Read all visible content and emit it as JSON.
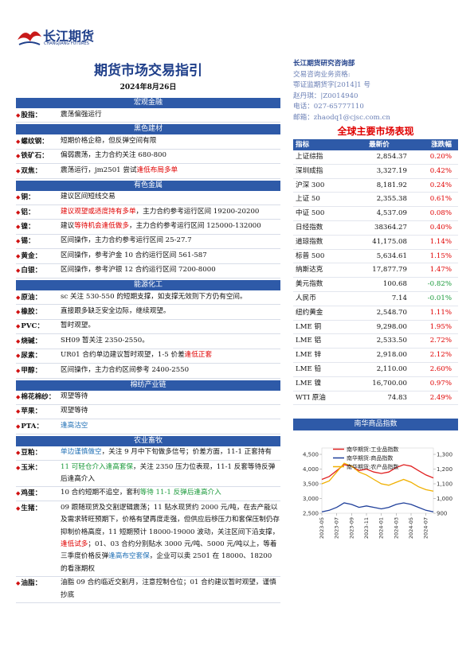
{
  "header": {
    "logo": "长江期货",
    "logo_en": "CHANGJIANG FUTURES",
    "title": "期货市场交易指引",
    "date": "2024年8月26日"
  },
  "sections": [
    {
      "title": "宏观金融",
      "rows": [
        {
          "label": "股指：",
          "text": [
            {
              "text": "震荡偏强运行"
            }
          ]
        }
      ]
    },
    {
      "title": "黑色建材",
      "rows": [
        {
          "label": "螺纹钢：",
          "text": [
            {
              "text": "短期价格企稳，但反弹空间有限"
            }
          ]
        },
        {
          "label": "铁矿石：",
          "text": [
            {
              "text": "偏弱震荡，主力合约关注 680-800"
            }
          ]
        },
        {
          "label": "双焦：",
          "text": [
            {
              "text": "震荡运行，jm2501 尝试"
            },
            {
              "text": "逢低布局多单",
              "color": "#e00000"
            }
          ]
        }
      ]
    },
    {
      "title": "有色金属",
      "rows": [
        {
          "label": "铜：",
          "text": [
            {
              "text": "建议区间短线交易"
            }
          ]
        },
        {
          "label": "铝：",
          "text": [
            {
              "text": "建议观望或适度持有多单",
              "color": "#e00000"
            },
            {
              "text": "，主力合约参考运行区间 19200-20200"
            }
          ]
        },
        {
          "label": "镍：",
          "text": [
            {
              "text": "建议"
            },
            {
              "text": "等待机会逢低做多",
              "color": "#e00000"
            },
            {
              "text": "，主力合约参考运行区间 125000-132000"
            }
          ]
        },
        {
          "label": "锡：",
          "text": [
            {
              "text": "区间操作，主力合约参考运行区间 25-27.7"
            }
          ]
        },
        {
          "label": "黄金：",
          "text": [
            {
              "text": "区间操作，参考沪金 10 合约运行区间 561-587"
            }
          ]
        },
        {
          "label": "白银：",
          "text": [
            {
              "text": "区间操作，参考沪银 12 合约运行区间 7200-8000"
            }
          ]
        }
      ]
    },
    {
      "title": "能源化工",
      "rows": [
        {
          "label": "原油：",
          "text": [
            {
              "text": "sc 关注 530-550 的短期支撑，如支撑无效则下方仍有空间。"
            }
          ]
        },
        {
          "label": "橡胶：",
          "text": [
            {
              "text": "直接跟多缺乏安全边际，继续观望。"
            }
          ]
        },
        {
          "label": "PVC：",
          "text": [
            {
              "text": "暂时观望。"
            }
          ]
        },
        {
          "label": "烧碱：",
          "text": [
            {
              "text": "SH09 暂关注 2350-2550。"
            }
          ]
        },
        {
          "label": "尿素：",
          "text": [
            {
              "text": "UR01 合约单边建议暂时观望，1-5 价差"
            },
            {
              "text": "逢低正套",
              "color": "#e00000"
            }
          ]
        },
        {
          "label": "甲醇：",
          "text": [
            {
              "text": "区间操作，主力合约区间参考 2400-2550"
            }
          ]
        }
      ]
    },
    {
      "title": "棉纺产业链",
      "rows": [
        {
          "label": "棉花棉纱：",
          "text": [
            {
              "text": "观望等待"
            }
          ]
        },
        {
          "label": "苹果：",
          "text": [
            {
              "text": "观望等待"
            }
          ]
        },
        {
          "label": "PTA：",
          "text": [
            {
              "text": "逢高沽空",
              "color": "#1f6fb5"
            }
          ]
        }
      ]
    },
    {
      "title": "农业畜牧",
      "rows": [
        {
          "label": "豆粕：",
          "text": [
            {
              "text": "单边谨慎做空",
              "color": "#1f6fb5"
            },
            {
              "text": "，关注 9 月中下旬做多信号；价差方面，11-1 正套持有"
            }
          ]
        },
        {
          "label": "玉米：",
          "text": [
            {
              "text": "11 可轻仓介入逢高套保",
              "color": "#1a9a3a"
            },
            {
              "text": "，关注 2350 压力位表现，11-1 反套等待反弹后逢高介入"
            }
          ]
        },
        {
          "label": "鸡蛋：",
          "text": [
            {
              "text": "10 合约短期不追空，套利"
            },
            {
              "text": "等待 11-1 反弹后逢高介入",
              "color": "#1a9a3a"
            }
          ]
        },
        {
          "label": "生猪：",
          "text": [
            {
              "text": "09 跟随现货及交割逻辑震荡；11 贴水现货约 2000 元/吨，在去产能以及需求转旺预期下，价格有望再度走强，但供应后移压力和套保压制仍存抑制价格高度，11 短期预计 18000-19000 波动，关注区间下沿支撑，"
            },
            {
              "text": "逢低试多",
              "color": "#e00000"
            },
            {
              "text": "；01、03 合约分别贴水 3000 元/吨、5000 元/吨以上，等着三季度价格反弹"
            },
            {
              "text": "逢高布空套保",
              "color": "#1f6fb5"
            },
            {
              "text": "，企业可以卖 2501 在 18000、18200 的看涨期权"
            }
          ]
        },
        {
          "label": "油脂：",
          "text": [
            {
              "text": "油脂 09 合约临近交割月，注意控制仓位；01 合约建议暂时观望，谨慎抄底"
            }
          ]
        }
      ]
    }
  ],
  "contact": [
    "长江期货研究咨询部",
    "交易咨询业务资格:",
    "鄂证监期货字[2014]1 号",
    "赵丹琪：|Z0014940",
    "电话：027-65777110",
    "邮箱：zhaodq1@cjsc.com.cn"
  ],
  "market": {
    "title": "全球主要市场表现",
    "headers": [
      "指标",
      "最新价",
      "涨跌幅"
    ],
    "rows": [
      [
        "上证综指",
        "2,854.37",
        "0.20%"
      ],
      [
        "深圳成指",
        "3,327.19",
        "0.42%"
      ],
      [
        "沪深 300",
        "8,181.92",
        "0.24%"
      ],
      [
        "上证 50",
        "2,355.38",
        "0.61%"
      ],
      [
        "中证 500",
        "4,537.09",
        "0.08%"
      ],
      [
        "日经指数",
        "38364.27",
        "0.40%"
      ],
      [
        "道琼指数",
        "41,175.08",
        "1.14%"
      ],
      [
        "标普 500",
        "5,634.61",
        "1.15%"
      ],
      [
        "纳斯达克",
        "17,877.79",
        "1.47%"
      ],
      [
        "美元指数",
        "100.68",
        "-0.82%"
      ],
      [
        "人民币",
        "7.14",
        "-0.01%"
      ],
      [
        "纽约黄金",
        "2,548.70",
        "1.11%"
      ],
      [
        "LME 铜",
        "9,298.00",
        "1.95%"
      ],
      [
        "LME 铝",
        "2,533.50",
        "2.72%"
      ],
      [
        "LME 锌",
        "2,918.00",
        "2.12%"
      ],
      [
        "LME 铅",
        "2,110.00",
        "2.60%"
      ],
      [
        "LME 镍",
        "16,700.00",
        "0.97%"
      ],
      [
        "WTI 原油",
        "74.83",
        "2.49%"
      ]
    ]
  },
  "chart_data": {
    "type": "line",
    "title": "南华商品指数",
    "categories": [
      "2023-05",
      null,
      "2023-07",
      null,
      "2023-09",
      null,
      "2023-11",
      null,
      "2024-01",
      null,
      "2024-03",
      null,
      "2024-05",
      null,
      "2024-07",
      null
    ],
    "series": [
      {
        "name": "南华期货:工业品指数",
        "color": "#e02020",
        "values": [
          3650,
          3750,
          3950,
          4150,
          4100,
          3950,
          4000,
          3900,
          3850,
          3900,
          4050,
          4150,
          4100,
          3950,
          3800,
          3700
        ]
      },
      {
        "name": "南华期货:商品指数",
        "color": "#1f3f9a",
        "values": [
          2550,
          2600,
          2700,
          2850,
          2800,
          2700,
          2750,
          2700,
          2650,
          2700,
          2800,
          2850,
          2800,
          2700,
          2600,
          2550
        ]
      },
      {
        "name": "南华期货:农产品指数",
        "color": "#f0b000",
        "axis": "y2",
        "values": [
          1100,
          1120,
          1180,
          1240,
          1220,
          1180,
          1160,
          1130,
          1100,
          1090,
          1110,
          1130,
          1110,
          1080,
          1060,
          1050
        ]
      }
    ],
    "ylim": [
      2500,
      4500
    ],
    "yticks": [
      {
        "value": 2500,
        "label": "2,500"
      },
      {
        "value": 3000,
        "label": "3,000"
      },
      {
        "value": 3500,
        "label": "3,500"
      },
      {
        "value": 4000,
        "label": "4,000"
      },
      {
        "value": 4500,
        "label": "4,500"
      }
    ],
    "y2lim": [
      900,
      1300
    ],
    "y2ticks": [
      900,
      {
        "value": 1000,
        "label": "1,000"
      },
      {
        "value": 1100,
        "label": "1,100"
      },
      {
        "value": 1200,
        "label": "1,200"
      },
      {
        "value": 1300,
        "label": "1,300"
      }
    ]
  }
}
